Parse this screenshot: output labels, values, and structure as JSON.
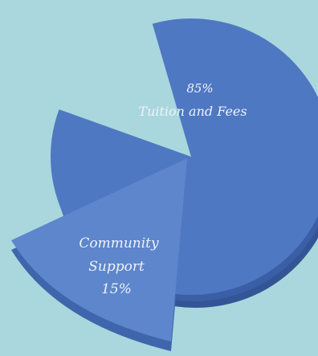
{
  "background_color": "#a9d7dd",
  "colors": {
    "main_top": "#4f78c2",
    "main_side": "#3a5fa6",
    "main_shadow": "#335595",
    "slice_top": "#5d86cc",
    "slice_side": "#3f66ac"
  },
  "chart_data": {
    "type": "pie",
    "style": "3d-exploded",
    "slices": [
      {
        "value": 85,
        "value_label": "85%",
        "label": "Tuition and Fees",
        "exploded": false
      },
      {
        "value": 15,
        "value_label": "15%",
        "label": "Community Support",
        "label_lines": [
          "Community",
          "Support"
        ],
        "exploded": true
      }
    ]
  }
}
